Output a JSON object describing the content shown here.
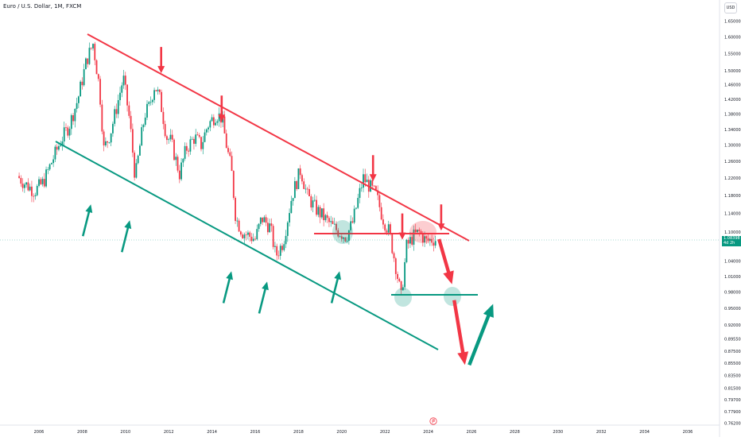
{
  "header": {
    "symbol_title": "Euro / U.S. Dollar, 1M, FXCM",
    "currency": "USD"
  },
  "colors": {
    "up": "#089981",
    "down": "#f23645",
    "resistance": "#f23645",
    "support": "#089981"
  },
  "price_tag": {
    "price": "1.08398",
    "countdown": "4d 2h"
  },
  "bottom_icon": "flag-icon",
  "chart_data": {
    "type": "candlestick",
    "x_ticks": [
      "2006",
      "2008",
      "2010",
      "2012",
      "2014",
      "2016",
      "2018",
      "2020",
      "2022",
      "2024",
      "2026",
      "2028",
      "2030",
      "2032",
      "2034",
      "2036"
    ],
    "y_ticks": [
      "1.65000",
      "1.60000",
      "1.55000",
      "1.50000",
      "1.46000",
      "1.42000",
      "1.38000",
      "1.34000",
      "1.30000",
      "1.26000",
      "1.22000",
      "1.18000",
      "1.14000",
      "1.10000",
      "1.04000",
      "1.01000",
      "0.98000",
      "0.95000",
      "0.92000",
      "0.89550",
      "0.87500",
      "0.85500",
      "0.83500",
      "0.81500",
      "0.79700",
      "0.77900",
      "0.76200"
    ],
    "y_axis_scale": "log",
    "last_price": 1.08398,
    "price_path": [
      [
        2005.0,
        1.225
      ],
      [
        2005.4,
        1.205
      ],
      [
        2005.8,
        1.19
      ],
      [
        2006.2,
        1.21
      ],
      [
        2006.6,
        1.26
      ],
      [
        2007.0,
        1.31
      ],
      [
        2007.4,
        1.35
      ],
      [
        2007.8,
        1.42
      ],
      [
        2008.2,
        1.53
      ],
      [
        2008.5,
        1.58
      ],
      [
        2008.8,
        1.45
      ],
      [
        2009.0,
        1.29
      ],
      [
        2009.3,
        1.33
      ],
      [
        2009.6,
        1.4
      ],
      [
        2009.9,
        1.48
      ],
      [
        2010.2,
        1.36
      ],
      [
        2010.45,
        1.22
      ],
      [
        2010.7,
        1.31
      ],
      [
        2010.9,
        1.38
      ],
      [
        2011.1,
        1.4
      ],
      [
        2011.35,
        1.46
      ],
      [
        2011.6,
        1.42
      ],
      [
        2011.9,
        1.32
      ],
      [
        2012.1,
        1.31
      ],
      [
        2012.5,
        1.23
      ],
      [
        2012.8,
        1.29
      ],
      [
        2013.2,
        1.32
      ],
      [
        2013.5,
        1.3
      ],
      [
        2013.8,
        1.35
      ],
      [
        2014.2,
        1.38
      ],
      [
        2014.45,
        1.37
      ],
      [
        2014.7,
        1.29
      ],
      [
        2014.9,
        1.24
      ],
      [
        2015.1,
        1.13
      ],
      [
        2015.4,
        1.1
      ],
      [
        2015.8,
        1.09
      ],
      [
        2016.0,
        1.085
      ],
      [
        2016.3,
        1.13
      ],
      [
        2016.7,
        1.11
      ],
      [
        2016.95,
        1.05
      ],
      [
        2017.3,
        1.08
      ],
      [
        2017.7,
        1.18
      ],
      [
        2018.1,
        1.24
      ],
      [
        2018.4,
        1.18
      ],
      [
        2018.8,
        1.15
      ],
      [
        2019.2,
        1.13
      ],
      [
        2019.6,
        1.11
      ],
      [
        2019.9,
        1.1
      ],
      [
        2020.2,
        1.09
      ],
      [
        2020.5,
        1.12
      ],
      [
        2020.8,
        1.18
      ],
      [
        2021.0,
        1.22
      ],
      [
        2021.3,
        1.2
      ],
      [
        2021.6,
        1.18
      ],
      [
        2021.9,
        1.13
      ],
      [
        2022.2,
        1.1
      ],
      [
        2022.5,
        1.03
      ],
      [
        2022.75,
        0.97
      ],
      [
        2023.0,
        1.07
      ],
      [
        2023.3,
        1.09
      ],
      [
        2023.6,
        1.1
      ],
      [
        2023.9,
        1.08
      ],
      [
        2024.2,
        1.085
      ],
      [
        2024.4,
        1.084
      ]
    ]
  },
  "annotations": {
    "arrows": [
      {
        "color": "resistance",
        "kind": "small",
        "dir": "down",
        "at": [
          2011.65,
          1.57
        ]
      },
      {
        "color": "resistance",
        "kind": "small",
        "dir": "down",
        "at": [
          2014.45,
          1.43
        ]
      },
      {
        "color": "resistance",
        "kind": "small",
        "dir": "down",
        "at": [
          2021.45,
          1.275
        ]
      },
      {
        "color": "resistance",
        "kind": "small",
        "dir": "down",
        "at": [
          2022.8,
          1.14
        ]
      },
      {
        "color": "resistance",
        "kind": "small",
        "dir": "down",
        "at": [
          2024.6,
          1.16
        ]
      },
      {
        "color": "support",
        "kind": "small",
        "dir": "up",
        "at": [
          2008.4,
          1.16
        ]
      },
      {
        "color": "support",
        "kind": "small",
        "dir": "up",
        "at": [
          2010.2,
          1.125
        ]
      },
      {
        "color": "support",
        "kind": "small",
        "dir": "up",
        "at": [
          2014.9,
          1.02
        ]
      },
      {
        "color": "support",
        "kind": "small",
        "dir": "up",
        "at": [
          2016.55,
          1.0
        ]
      },
      {
        "color": "support",
        "kind": "small",
        "dir": "up",
        "at": [
          2019.9,
          1.02
        ]
      },
      {
        "color": "resistance",
        "kind": "big",
        "dir": "down",
        "from": [
          2024.5,
          1.085
        ],
        "to": [
          2025.1,
          0.995
        ]
      },
      {
        "color": "resistance",
        "kind": "big",
        "dir": "down",
        "from": [
          2025.2,
          0.965
        ],
        "to": [
          2025.7,
          0.852
        ]
      },
      {
        "color": "support",
        "kind": "big",
        "dir": "up",
        "from": [
          2025.9,
          0.852
        ],
        "to": [
          2027.0,
          0.958
        ]
      }
    ]
  }
}
